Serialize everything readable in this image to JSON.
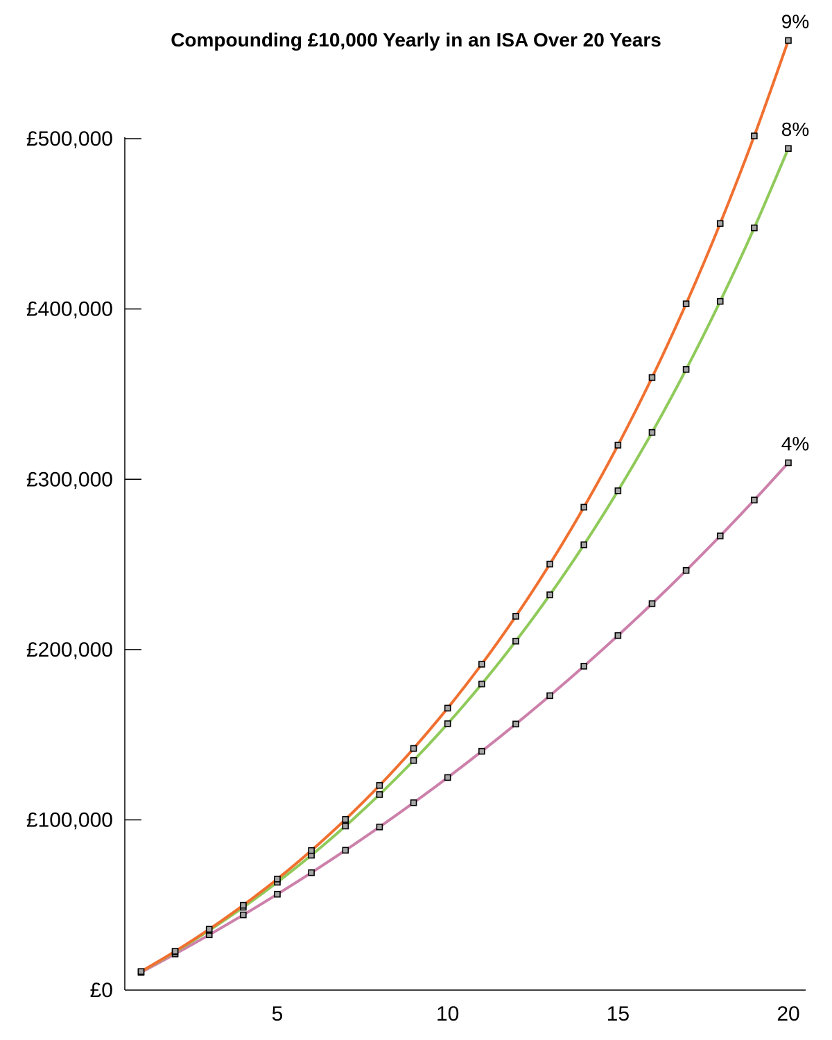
{
  "chart_data": {
    "type": "line",
    "title": "Compounding £10,000 Yearly in an ISA Over 20 Years",
    "xlabel": "",
    "ylabel": "",
    "x": [
      1,
      2,
      3,
      4,
      5,
      6,
      7,
      8,
      9,
      10,
      11,
      12,
      13,
      14,
      15,
      16,
      17,
      18,
      19,
      20
    ],
    "xlim": [
      0,
      20
    ],
    "ylim": [
      0,
      500000
    ],
    "x_ticks": [
      5,
      10,
      15,
      20
    ],
    "x_tick_labels": [
      "5",
      "10",
      "15",
      "20"
    ],
    "y_ticks": [
      0,
      100000,
      200000,
      300000,
      400000,
      500000
    ],
    "y_tick_labels": [
      "£0",
      "£100,000",
      "£200,000",
      "£300,000",
      "£400,000",
      "£500,000"
    ],
    "grid": false,
    "legend": "none",
    "series": [
      {
        "name": "9%",
        "color": "#f07030",
        "values": [
          10900,
          22781,
          35731,
          49847,
          65233,
          82004,
          100285,
          120210,
          141929,
          165603,
          191407,
          219534,
          250192,
          283609,
          320034,
          359737,
          403013,
          450184,
          501600,
          557648
        ]
      },
      {
        "name": "8%",
        "color": "#8fca5a",
        "values": [
          10800,
          22464,
          35061,
          48666,
          63359,
          79228,
          96366,
          114876,
          134866,
          156455,
          179772,
          204953,
          232149,
          261521,
          293243,
          327502,
          364502,
          404463,
          447620,
          494229
        ]
      },
      {
        "name": "4%",
        "color": "#cc80aa",
        "values": [
          10400,
          21216,
          32465,
          44163,
          56330,
          68983,
          82142,
          95828,
          110061,
          124864,
          140258,
          156268,
          172919,
          190236,
          208245,
          226975,
          246454,
          266712,
          287781,
          309692
        ]
      }
    ]
  }
}
